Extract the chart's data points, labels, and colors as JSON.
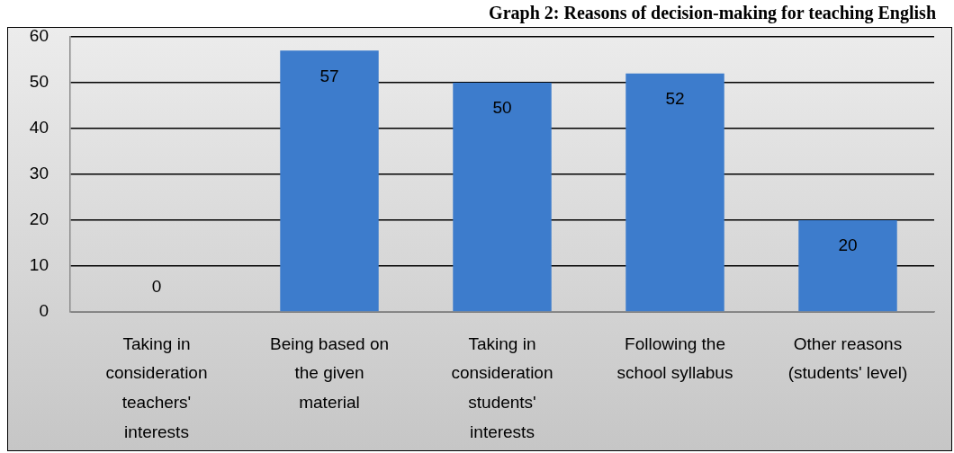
{
  "chart_data": {
    "type": "bar",
    "title": "Graph 2: Reasons of decision-making for teaching English",
    "categories": [
      "Taking in consideration teachers' interests",
      "Being based on the given material",
      "Taking in consideration students' interests",
      "Following the school syllabus",
      "Other reasons (students' level)"
    ],
    "values": [
      0,
      57,
      50,
      52,
      20
    ],
    "color": "#3d7ccc",
    "ylim": [
      0,
      60
    ],
    "yticks": [
      0,
      10,
      20,
      30,
      40,
      50,
      60
    ],
    "grid": "y",
    "data_labels": true
  }
}
